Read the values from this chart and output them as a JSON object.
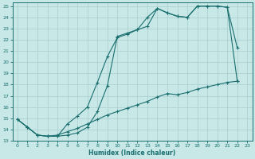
{
  "xlabel": "Humidex (Indice chaleur)",
  "bg_color": "#c8e8e8",
  "line_color": "#1a6e6e",
  "grid_color": "#a8cece",
  "xlim": [
    -0.5,
    23.5
  ],
  "ylim": [
    13,
    25.3
  ],
  "xticks": [
    0,
    1,
    2,
    3,
    4,
    5,
    6,
    7,
    8,
    9,
    10,
    11,
    12,
    13,
    14,
    15,
    16,
    17,
    18,
    19,
    20,
    21,
    22,
    23
  ],
  "yticks": [
    13,
    14,
    15,
    16,
    17,
    18,
    19,
    20,
    21,
    22,
    23,
    24,
    25
  ],
  "line1_x": [
    0,
    1,
    2,
    3,
    4,
    5,
    6,
    7,
    8,
    9,
    10,
    11,
    12,
    13,
    14,
    15,
    16,
    17,
    18,
    19,
    20,
    21,
    22
  ],
  "line1_y": [
    14.9,
    14.2,
    13.5,
    13.4,
    13.4,
    14.5,
    15.2,
    16.0,
    18.2,
    20.5,
    22.2,
    22.5,
    22.9,
    24.0,
    24.8,
    24.4,
    24.1,
    24.0,
    25.0,
    25.0,
    25.0,
    24.9,
    21.3
  ],
  "line2_x": [
    0,
    1,
    2,
    3,
    4,
    5,
    6,
    7,
    8,
    9,
    10,
    11,
    12,
    13,
    14,
    15,
    16,
    17,
    18,
    19,
    20,
    21,
    22
  ],
  "line2_y": [
    14.9,
    14.2,
    13.5,
    13.4,
    13.4,
    13.5,
    13.7,
    14.2,
    15.6,
    17.9,
    22.3,
    22.6,
    22.9,
    23.2,
    24.8,
    24.4,
    24.1,
    24.0,
    25.0,
    25.0,
    25.0,
    24.9,
    18.3
  ],
  "line3_x": [
    0,
    1,
    2,
    3,
    4,
    5,
    6,
    7,
    8,
    9,
    10,
    11,
    12,
    13,
    14,
    15,
    16,
    17,
    18,
    19,
    20,
    21,
    22
  ],
  "line3_y": [
    14.9,
    14.2,
    13.5,
    13.4,
    13.5,
    13.8,
    14.1,
    14.5,
    14.9,
    15.3,
    15.6,
    15.9,
    16.2,
    16.5,
    16.9,
    17.2,
    17.1,
    17.3,
    17.6,
    17.8,
    18.0,
    18.2,
    18.3
  ]
}
